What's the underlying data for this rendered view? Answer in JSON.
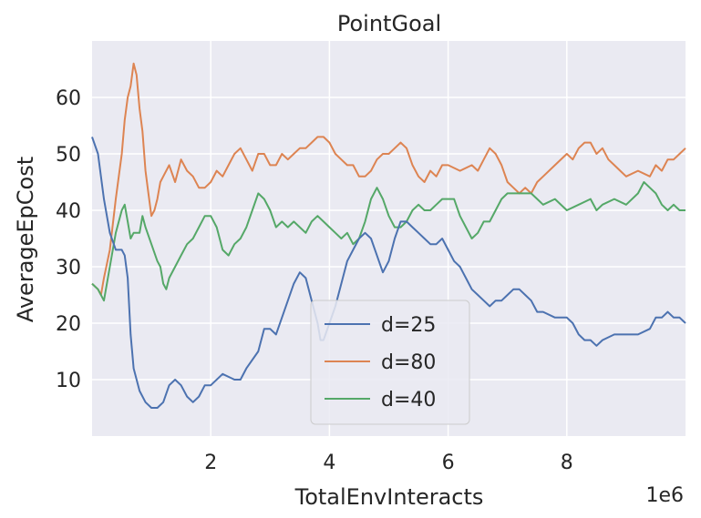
{
  "chart_data": {
    "type": "line",
    "title": "PointGoal",
    "xlabel": "TotalEnvInteracts",
    "ylabel": "AverageEpCost",
    "x_scale_label": "1e6",
    "xlim": [
      0.0,
      10.0
    ],
    "ylim": [
      0,
      70
    ],
    "x_ticks": [
      2,
      4,
      6,
      8
    ],
    "y_ticks": [
      10,
      20,
      30,
      40,
      50,
      60
    ],
    "grid": true,
    "legend_position": "lower-center",
    "series": [
      {
        "name": "d=25",
        "color": "#4c72b0",
        "points": [
          [
            0.0,
            53
          ],
          [
            0.1,
            50
          ],
          [
            0.2,
            42
          ],
          [
            0.3,
            36
          ],
          [
            0.4,
            33
          ],
          [
            0.5,
            33
          ],
          [
            0.55,
            32
          ],
          [
            0.6,
            28
          ],
          [
            0.65,
            18
          ],
          [
            0.7,
            12
          ],
          [
            0.8,
            8
          ],
          [
            0.9,
            6
          ],
          [
            1.0,
            5
          ],
          [
            1.1,
            5
          ],
          [
            1.2,
            6
          ],
          [
            1.3,
            9
          ],
          [
            1.4,
            10
          ],
          [
            1.5,
            9
          ],
          [
            1.6,
            7
          ],
          [
            1.7,
            6
          ],
          [
            1.8,
            7
          ],
          [
            1.9,
            9
          ],
          [
            2.0,
            9
          ],
          [
            2.2,
            11
          ],
          [
            2.4,
            10
          ],
          [
            2.5,
            10
          ],
          [
            2.6,
            12
          ],
          [
            2.8,
            15
          ],
          [
            2.9,
            19
          ],
          [
            3.0,
            19
          ],
          [
            3.1,
            18
          ],
          [
            3.2,
            21
          ],
          [
            3.3,
            24
          ],
          [
            3.4,
            27
          ],
          [
            3.5,
            29
          ],
          [
            3.6,
            28
          ],
          [
            3.7,
            24
          ],
          [
            3.8,
            20
          ],
          [
            3.85,
            17
          ],
          [
            3.9,
            17
          ],
          [
            4.0,
            20
          ],
          [
            4.1,
            23
          ],
          [
            4.2,
            27
          ],
          [
            4.3,
            31
          ],
          [
            4.4,
            33
          ],
          [
            4.5,
            35
          ],
          [
            4.6,
            36
          ],
          [
            4.7,
            35
          ],
          [
            4.8,
            32
          ],
          [
            4.9,
            29
          ],
          [
            5.0,
            31
          ],
          [
            5.1,
            35
          ],
          [
            5.2,
            38
          ],
          [
            5.3,
            38
          ],
          [
            5.4,
            37
          ],
          [
            5.5,
            36
          ],
          [
            5.6,
            35
          ],
          [
            5.7,
            34
          ],
          [
            5.8,
            34
          ],
          [
            5.9,
            35
          ],
          [
            6.0,
            33
          ],
          [
            6.1,
            31
          ],
          [
            6.2,
            30
          ],
          [
            6.3,
            28
          ],
          [
            6.4,
            26
          ],
          [
            6.5,
            25
          ],
          [
            6.6,
            24
          ],
          [
            6.7,
            23
          ],
          [
            6.8,
            24
          ],
          [
            6.9,
            24
          ],
          [
            7.0,
            25
          ],
          [
            7.1,
            26
          ],
          [
            7.2,
            26
          ],
          [
            7.3,
            25
          ],
          [
            7.4,
            24
          ],
          [
            7.5,
            22
          ],
          [
            7.6,
            22
          ],
          [
            7.8,
            21
          ],
          [
            8.0,
            21
          ],
          [
            8.1,
            20
          ],
          [
            8.2,
            18
          ],
          [
            8.3,
            17
          ],
          [
            8.4,
            17
          ],
          [
            8.5,
            16
          ],
          [
            8.6,
            17
          ],
          [
            8.8,
            18
          ],
          [
            9.0,
            18
          ],
          [
            9.2,
            18
          ],
          [
            9.4,
            19
          ],
          [
            9.5,
            21
          ],
          [
            9.6,
            21
          ],
          [
            9.7,
            22
          ],
          [
            9.8,
            21
          ],
          [
            9.9,
            21
          ],
          [
            10.0,
            20
          ]
        ]
      },
      {
        "name": "d=80",
        "color": "#dd8452",
        "points": [
          [
            0.0,
            27
          ],
          [
            0.1,
            26
          ],
          [
            0.15,
            25
          ],
          [
            0.2,
            28
          ],
          [
            0.3,
            33
          ],
          [
            0.4,
            42
          ],
          [
            0.5,
            50
          ],
          [
            0.55,
            56
          ],
          [
            0.6,
            60
          ],
          [
            0.65,
            62
          ],
          [
            0.7,
            66
          ],
          [
            0.75,
            64
          ],
          [
            0.8,
            58
          ],
          [
            0.85,
            54
          ],
          [
            0.9,
            47
          ],
          [
            0.95,
            43
          ],
          [
            1.0,
            39
          ],
          [
            1.05,
            40
          ],
          [
            1.1,
            42
          ],
          [
            1.15,
            45
          ],
          [
            1.2,
            46
          ],
          [
            1.3,
            48
          ],
          [
            1.4,
            45
          ],
          [
            1.5,
            49
          ],
          [
            1.6,
            47
          ],
          [
            1.7,
            46
          ],
          [
            1.8,
            44
          ],
          [
            1.9,
            44
          ],
          [
            2.0,
            45
          ],
          [
            2.1,
            47
          ],
          [
            2.2,
            46
          ],
          [
            2.3,
            48
          ],
          [
            2.4,
            50
          ],
          [
            2.5,
            51
          ],
          [
            2.6,
            49
          ],
          [
            2.7,
            47
          ],
          [
            2.8,
            50
          ],
          [
            2.9,
            50
          ],
          [
            3.0,
            48
          ],
          [
            3.1,
            48
          ],
          [
            3.2,
            50
          ],
          [
            3.3,
            49
          ],
          [
            3.4,
            50
          ],
          [
            3.5,
            51
          ],
          [
            3.6,
            51
          ],
          [
            3.7,
            52
          ],
          [
            3.8,
            53
          ],
          [
            3.9,
            53
          ],
          [
            4.0,
            52
          ],
          [
            4.1,
            50
          ],
          [
            4.2,
            49
          ],
          [
            4.3,
            48
          ],
          [
            4.4,
            48
          ],
          [
            4.5,
            46
          ],
          [
            4.6,
            46
          ],
          [
            4.7,
            47
          ],
          [
            4.8,
            49
          ],
          [
            4.9,
            50
          ],
          [
            5.0,
            50
          ],
          [
            5.1,
            51
          ],
          [
            5.2,
            52
          ],
          [
            5.3,
            51
          ],
          [
            5.4,
            48
          ],
          [
            5.5,
            46
          ],
          [
            5.6,
            45
          ],
          [
            5.7,
            47
          ],
          [
            5.8,
            46
          ],
          [
            5.9,
            48
          ],
          [
            6.0,
            48
          ],
          [
            6.2,
            47
          ],
          [
            6.4,
            48
          ],
          [
            6.5,
            47
          ],
          [
            6.6,
            49
          ],
          [
            6.7,
            51
          ],
          [
            6.8,
            50
          ],
          [
            6.9,
            48
          ],
          [
            7.0,
            45
          ],
          [
            7.1,
            44
          ],
          [
            7.2,
            43
          ],
          [
            7.3,
            44
          ],
          [
            7.4,
            43
          ],
          [
            7.5,
            45
          ],
          [
            7.6,
            46
          ],
          [
            7.8,
            48
          ],
          [
            8.0,
            50
          ],
          [
            8.1,
            49
          ],
          [
            8.2,
            51
          ],
          [
            8.3,
            52
          ],
          [
            8.4,
            52
          ],
          [
            8.5,
            50
          ],
          [
            8.6,
            51
          ],
          [
            8.7,
            49
          ],
          [
            8.8,
            48
          ],
          [
            8.9,
            47
          ],
          [
            9.0,
            46
          ],
          [
            9.2,
            47
          ],
          [
            9.4,
            46
          ],
          [
            9.5,
            48
          ],
          [
            9.6,
            47
          ],
          [
            9.7,
            49
          ],
          [
            9.8,
            49
          ],
          [
            9.9,
            50
          ],
          [
            10.0,
            51
          ]
        ]
      },
      {
        "name": "d=40",
        "color": "#55a868",
        "points": [
          [
            0.0,
            27
          ],
          [
            0.1,
            26
          ],
          [
            0.2,
            24
          ],
          [
            0.3,
            30
          ],
          [
            0.4,
            36
          ],
          [
            0.5,
            40
          ],
          [
            0.55,
            41
          ],
          [
            0.6,
            38
          ],
          [
            0.65,
            35
          ],
          [
            0.7,
            36
          ],
          [
            0.8,
            36
          ],
          [
            0.85,
            39
          ],
          [
            0.9,
            37
          ],
          [
            1.0,
            34
          ],
          [
            1.1,
            31
          ],
          [
            1.15,
            30
          ],
          [
            1.2,
            27
          ],
          [
            1.25,
            26
          ],
          [
            1.3,
            28
          ],
          [
            1.4,
            30
          ],
          [
            1.5,
            32
          ],
          [
            1.6,
            34
          ],
          [
            1.7,
            35
          ],
          [
            1.8,
            37
          ],
          [
            1.9,
            39
          ],
          [
            2.0,
            39
          ],
          [
            2.1,
            37
          ],
          [
            2.2,
            33
          ],
          [
            2.3,
            32
          ],
          [
            2.4,
            34
          ],
          [
            2.5,
            35
          ],
          [
            2.6,
            37
          ],
          [
            2.7,
            40
          ],
          [
            2.8,
            43
          ],
          [
            2.9,
            42
          ],
          [
            3.0,
            40
          ],
          [
            3.1,
            37
          ],
          [
            3.2,
            38
          ],
          [
            3.3,
            37
          ],
          [
            3.4,
            38
          ],
          [
            3.5,
            37
          ],
          [
            3.6,
            36
          ],
          [
            3.7,
            38
          ],
          [
            3.8,
            39
          ],
          [
            3.9,
            38
          ],
          [
            4.0,
            37
          ],
          [
            4.1,
            36
          ],
          [
            4.2,
            35
          ],
          [
            4.3,
            36
          ],
          [
            4.4,
            34
          ],
          [
            4.5,
            35
          ],
          [
            4.6,
            38
          ],
          [
            4.7,
            42
          ],
          [
            4.8,
            44
          ],
          [
            4.9,
            42
          ],
          [
            5.0,
            39
          ],
          [
            5.1,
            37
          ],
          [
            5.2,
            37
          ],
          [
            5.3,
            38
          ],
          [
            5.4,
            40
          ],
          [
            5.5,
            41
          ],
          [
            5.6,
            40
          ],
          [
            5.7,
            40
          ],
          [
            5.8,
            41
          ],
          [
            5.9,
            42
          ],
          [
            6.0,
            42
          ],
          [
            6.1,
            42
          ],
          [
            6.2,
            39
          ],
          [
            6.3,
            37
          ],
          [
            6.4,
            35
          ],
          [
            6.5,
            36
          ],
          [
            6.6,
            38
          ],
          [
            6.7,
            38
          ],
          [
            6.8,
            40
          ],
          [
            6.9,
            42
          ],
          [
            7.0,
            43
          ],
          [
            7.2,
            43
          ],
          [
            7.4,
            43
          ],
          [
            7.5,
            42
          ],
          [
            7.6,
            41
          ],
          [
            7.8,
            42
          ],
          [
            8.0,
            40
          ],
          [
            8.2,
            41
          ],
          [
            8.4,
            42
          ],
          [
            8.5,
            40
          ],
          [
            8.6,
            41
          ],
          [
            8.8,
            42
          ],
          [
            9.0,
            41
          ],
          [
            9.2,
            43
          ],
          [
            9.3,
            45
          ],
          [
            9.4,
            44
          ],
          [
            9.5,
            43
          ],
          [
            9.6,
            41
          ],
          [
            9.7,
            40
          ],
          [
            9.8,
            41
          ],
          [
            9.9,
            40
          ],
          [
            10.0,
            40
          ]
        ]
      }
    ]
  }
}
